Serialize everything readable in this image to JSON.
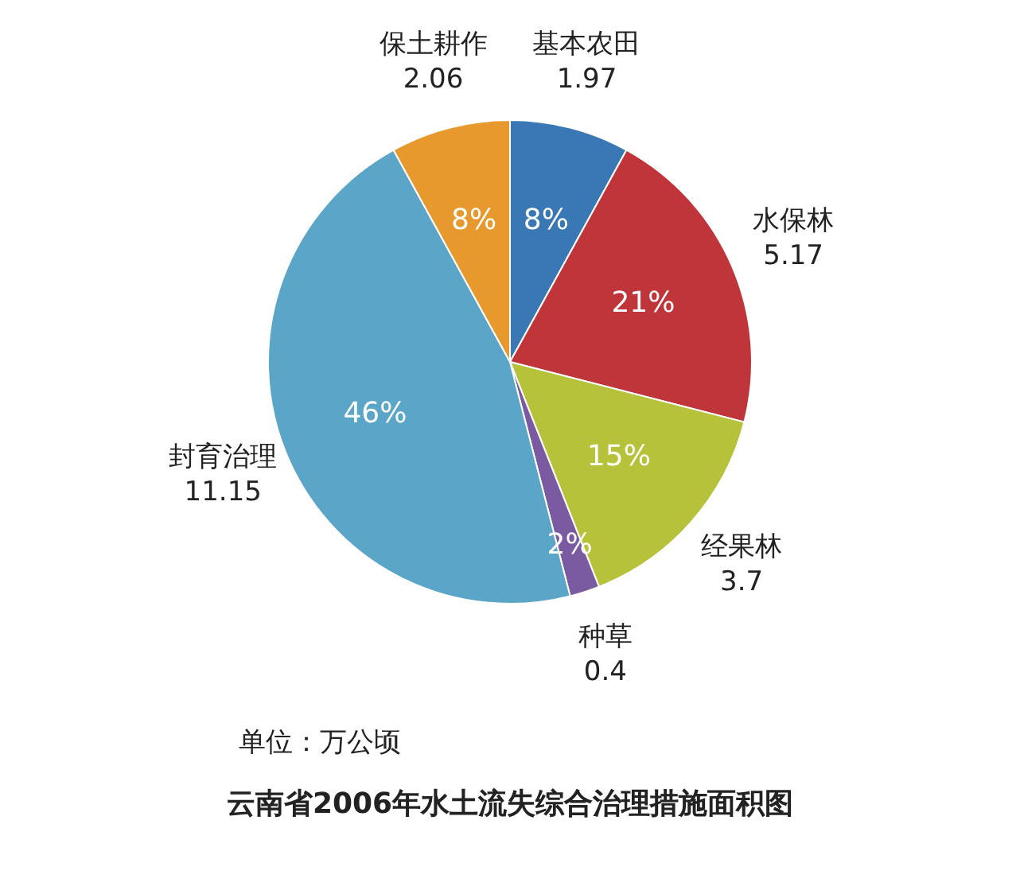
{
  "chart_data": {
    "type": "pie",
    "title": "云南省2006年水土流失综合治理措施面积图",
    "annotations": [
      "单位：万公顷",
      {
        "text": "1.97",
        "x": "基本农田"
      },
      {
        "text": "5.17",
        "x": "水保林"
      },
      {
        "text": "3.7",
        "x": "经果林"
      },
      {
        "text": "0.4",
        "x": "种草"
      },
      {
        "text": "11.15",
        "x": "封育治理"
      },
      {
        "text": "2.06",
        "x": "保土耕作"
      }
    ],
    "categories": [
      "基本农田",
      "水保林",
      "经果林",
      "种草",
      "封育治理",
      "保土耕作"
    ],
    "values": [
      8,
      21,
      15,
      2,
      46,
      8
    ],
    "colors": [
      "#3a78b5",
      "#c0353a",
      "#b5c23a",
      "#7a5aa0",
      "#5aa5c8",
      "#e8992e"
    ],
    "value_labels": [
      "8%",
      "21%",
      "15%",
      "2%",
      "46%",
      "8%"
    ]
  }
}
